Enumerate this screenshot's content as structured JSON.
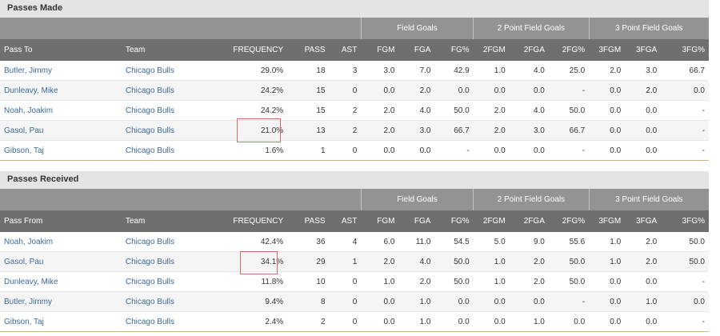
{
  "passes_made": {
    "title": "Passes Made",
    "groups": [
      "Field Goals",
      "2 Point Field Goals",
      "3 Point Field Goals"
    ],
    "columns": [
      "Pass To",
      "Team",
      "FREQUENCY",
      "PASS",
      "AST",
      "FGM",
      "FGA",
      "FG%",
      "2FGM",
      "2FGA",
      "2FG%",
      "3FGM",
      "3FGA",
      "3FG%"
    ],
    "rows": [
      [
        "Butler, Jimmy",
        "Chicago Bulls",
        "29.0%",
        "18",
        "3",
        "3.0",
        "7.0",
        "42.9",
        "1.0",
        "4.0",
        "25.0",
        "2.0",
        "3.0",
        "66.7"
      ],
      [
        "Dunleavy, Mike",
        "Chicago Bulls",
        "24.2%",
        "15",
        "0",
        "0.0",
        "2.0",
        "0.0",
        "0.0",
        "0.0",
        "-",
        "0.0",
        "2.0",
        "0.0"
      ],
      [
        "Noah, Joakim",
        "Chicago Bulls",
        "24.2%",
        "15",
        "2",
        "2.0",
        "4.0",
        "50.0",
        "2.0",
        "4.0",
        "50.0",
        "0.0",
        "0.0",
        "-"
      ],
      [
        "Gasol, Pau",
        "Chicago Bulls",
        "21.0%",
        "13",
        "2",
        "2.0",
        "3.0",
        "66.7",
        "2.0",
        "3.0",
        "66.7",
        "0.0",
        "0.0",
        "-"
      ],
      [
        "Gibson, Taj",
        "Chicago Bulls",
        "1.6%",
        "1",
        "0",
        "0.0",
        "0.0",
        "-",
        "0.0",
        "0.0",
        "-",
        "0.0",
        "0.0",
        "-"
      ]
    ]
  },
  "passes_received": {
    "title": "Passes Received",
    "groups": [
      "Field Goals",
      "2 Point Field Goals",
      "3 Point Field Goals"
    ],
    "columns": [
      "Pass From",
      "Team",
      "FREQUENCY",
      "PASS",
      "AST",
      "FGM",
      "FGA",
      "FG%",
      "2FGM",
      "2FGA",
      "2FG%",
      "3FGM",
      "3FGA",
      "3FG%"
    ],
    "rows": [
      [
        "Noah, Joakim",
        "Chicago Bulls",
        "42.4%",
        "36",
        "4",
        "6.0",
        "11.0",
        "54.5",
        "5.0",
        "9.0",
        "55.6",
        "1.0",
        "2.0",
        "50.0"
      ],
      [
        "Gasol, Pau",
        "Chicago Bulls",
        "34.1%",
        "29",
        "1",
        "2.0",
        "4.0",
        "50.0",
        "1.0",
        "2.0",
        "50.0",
        "1.0",
        "2.0",
        "50.0"
      ],
      [
        "Dunleavy, Mike",
        "Chicago Bulls",
        "11.8%",
        "10",
        "0",
        "1.0",
        "2.0",
        "50.0",
        "1.0",
        "2.0",
        "50.0",
        "0.0",
        "0.0",
        "-"
      ],
      [
        "Butler, Jimmy",
        "Chicago Bulls",
        "9.4%",
        "8",
        "0",
        "0.0",
        "1.0",
        "0.0",
        "0.0",
        "0.0",
        "-",
        "0.0",
        "1.0",
        "0.0"
      ],
      [
        "Gibson, Taj",
        "Chicago Bulls",
        "2.4%",
        "2",
        "0",
        "0.0",
        "1.0",
        "0.0",
        "0.0",
        "1.0",
        "0.0",
        "0.0",
        "0.0",
        "-"
      ]
    ]
  }
}
